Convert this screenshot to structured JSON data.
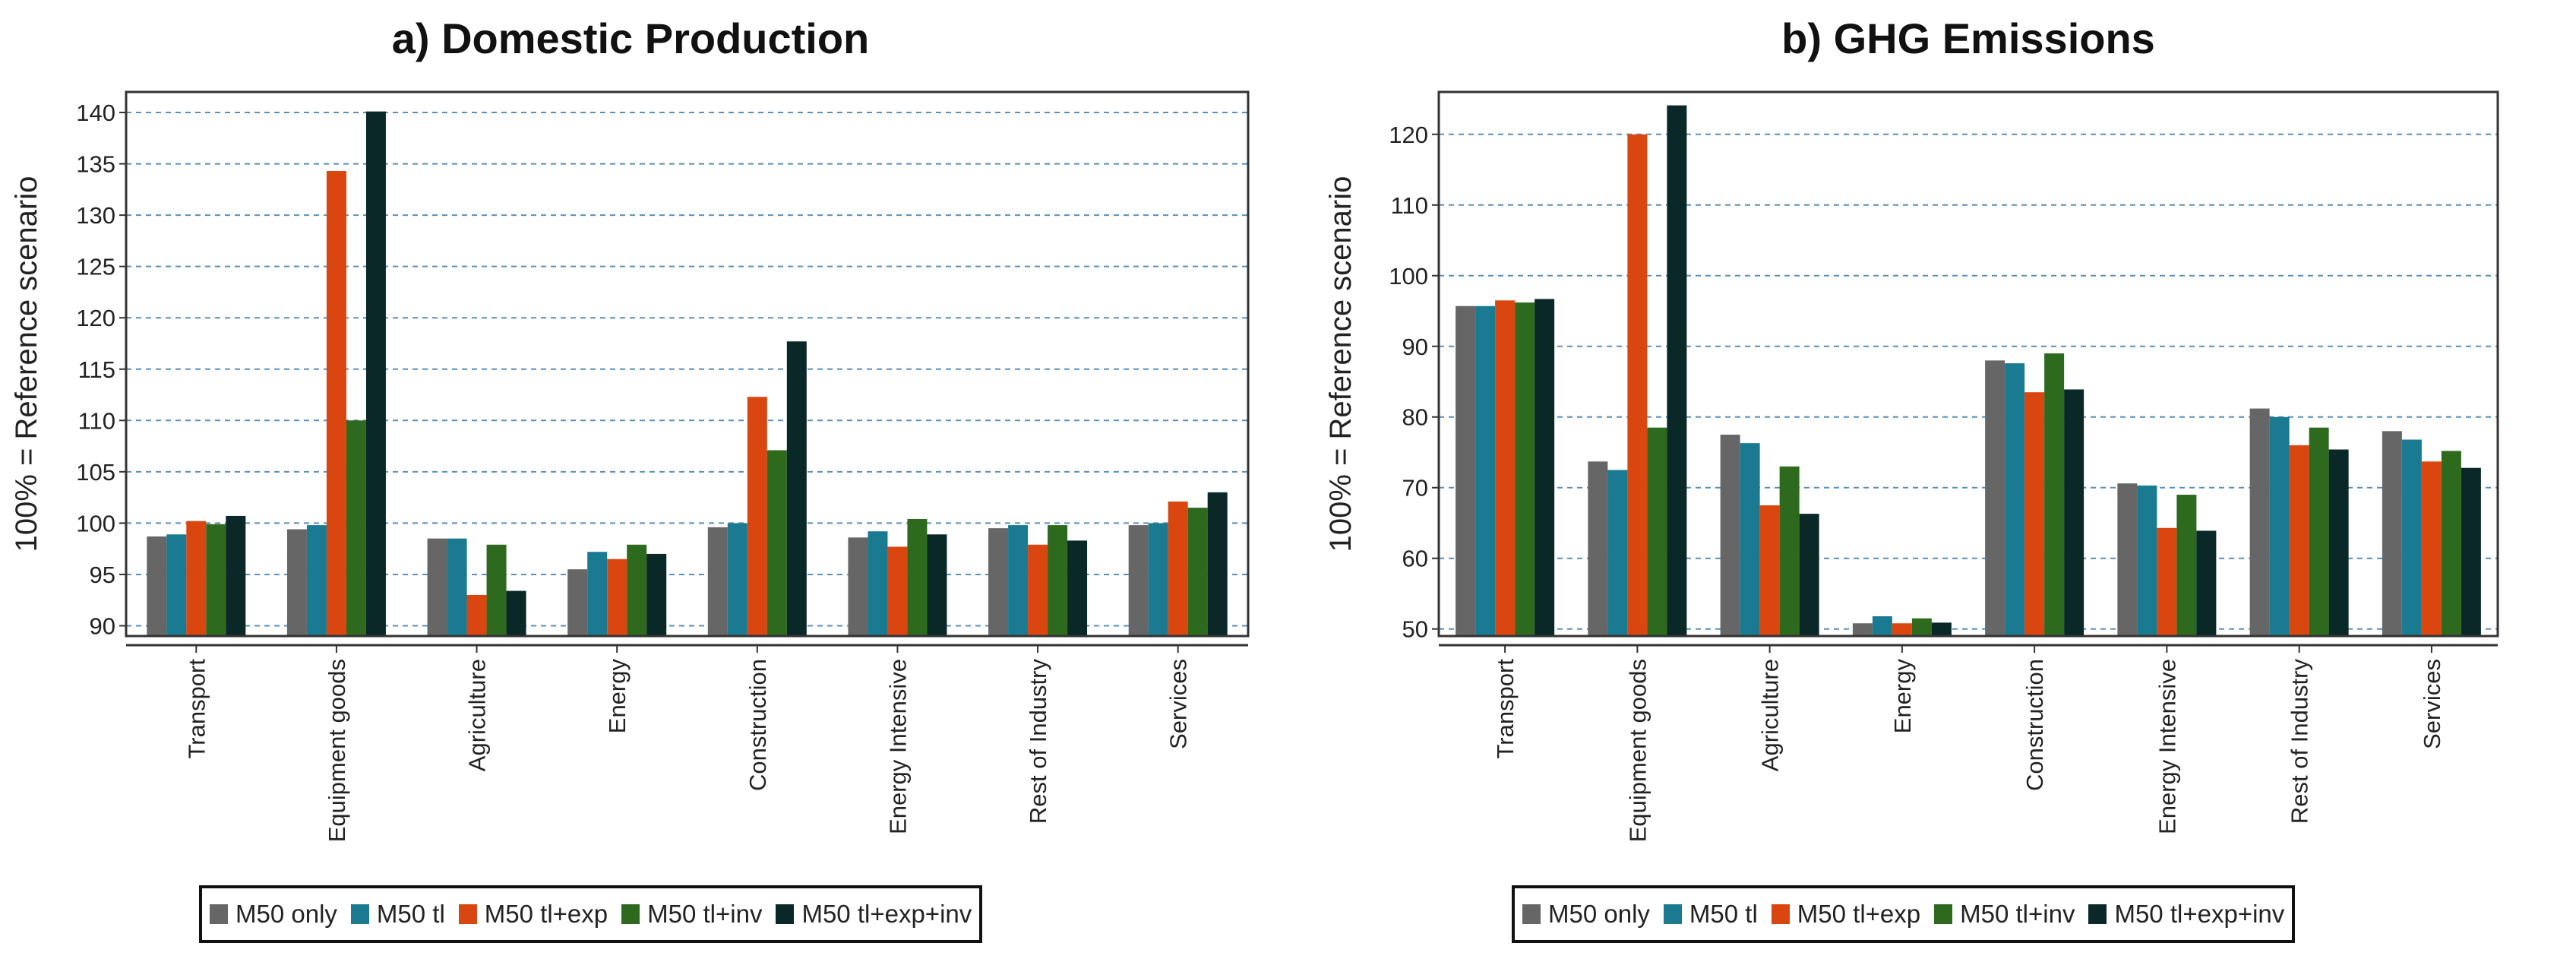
{
  "legend": {
    "items": [
      {
        "label": "M50 only",
        "color": "#666666"
      },
      {
        "label": "M50 tl",
        "color": "#1a7a91"
      },
      {
        "label": "M50 tl+exp",
        "color": "#d9460f"
      },
      {
        "label": "M50 tl+inv",
        "color": "#2d6a1e"
      },
      {
        "label": "M50 tl+exp+inv",
        "color": "#0a2828"
      }
    ]
  },
  "chart_data": [
    {
      "type": "bar",
      "title": "a) Domestic Production",
      "xlabel": "",
      "ylabel": "100% = Reference scenario",
      "ylim": [
        89,
        142
      ],
      "yticks": [
        90,
        95,
        100,
        105,
        110,
        115,
        120,
        125,
        130,
        135,
        140
      ],
      "grid": "horizontal dashed",
      "categories": [
        "Transport",
        "Equipment goods",
        "Agriculture",
        "Energy",
        "Construction",
        "Energy Intensive",
        "Rest of Industry",
        "Services"
      ],
      "series": [
        {
          "name": "M50 only",
          "values": [
            98.7,
            99.4,
            98.5,
            95.5,
            99.6,
            98.6,
            99.5,
            99.8
          ]
        },
        {
          "name": "M50 tl",
          "values": [
            98.9,
            99.8,
            98.5,
            97.2,
            100.0,
            99.2,
            99.8,
            100.0
          ]
        },
        {
          "name": "M50 tl+exp",
          "values": [
            100.2,
            134.3,
            93.0,
            96.5,
            112.3,
            97.7,
            97.9,
            102.1
          ]
        },
        {
          "name": "M50 tl+inv",
          "values": [
            99.9,
            110.0,
            97.9,
            97.9,
            107.1,
            100.4,
            99.8,
            101.5
          ]
        },
        {
          "name": "M50 tl+exp+inv",
          "values": [
            100.7,
            140.1,
            93.4,
            97.0,
            117.7,
            98.9,
            98.3,
            103.0
          ]
        }
      ]
    },
    {
      "type": "bar",
      "title": "b) GHG Emissions",
      "xlabel": "",
      "ylabel": "100% = Reference scenario",
      "ylim": [
        49,
        126
      ],
      "yticks": [
        50,
        60,
        70,
        80,
        90,
        100,
        110,
        120
      ],
      "grid": "horizontal dashed",
      "categories": [
        "Transport",
        "Equipment goods",
        "Agriculture",
        "Energy",
        "Construction",
        "Energy Intensive",
        "Rest of Industry",
        "Services"
      ],
      "series": [
        {
          "name": "M50 only",
          "values": [
            95.7,
            73.7,
            77.5,
            50.8,
            88.0,
            70.6,
            81.2,
            78.0
          ]
        },
        {
          "name": "M50 tl",
          "values": [
            95.7,
            72.5,
            76.3,
            51.8,
            87.6,
            70.3,
            80.0,
            76.8
          ]
        },
        {
          "name": "M50 tl+exp",
          "values": [
            96.5,
            120.0,
            67.5,
            50.8,
            83.5,
            64.3,
            76.0,
            73.7
          ]
        },
        {
          "name": "M50 tl+inv",
          "values": [
            96.2,
            78.5,
            73.0,
            51.5,
            89.0,
            69.0,
            78.5,
            75.2
          ]
        },
        {
          "name": "M50 tl+exp+inv",
          "values": [
            96.7,
            124.1,
            66.3,
            50.9,
            83.9,
            63.9,
            75.4,
            72.8
          ]
        }
      ]
    }
  ]
}
